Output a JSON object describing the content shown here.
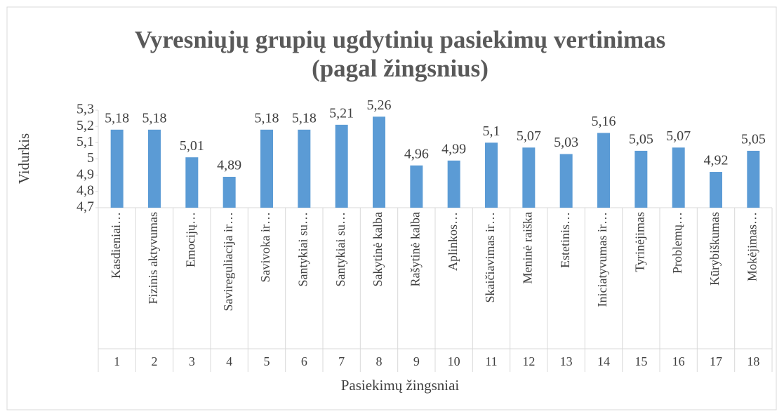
{
  "chart_data": {
    "type": "bar",
    "title": "Vyresniųjų grupių ugdytinių pasiekimų vertinimas",
    "subtitle": "(pagal žingsnius)",
    "x_label": "Pasiekimų žingsniai",
    "y_label": "Vidurkis",
    "categories": [
      "Kasdieniai…",
      "Fizinis aktyvumas",
      "Emocijų…",
      "Savireguliacija ir…",
      "Savivoka ir…",
      "Santykiai su…",
      "Santykiai su…",
      "Sakytinė kalba",
      "Rašytinė kalba",
      "Aplinkos…",
      "Skaičiavimas ir…",
      "Meninė raiška",
      "Estetinis…",
      "Iniciatyvumas ir…",
      "Tyrinėjimas",
      "Problemų…",
      "Kūrybiškumas",
      "Mokėjimas…"
    ],
    "category_numbers": [
      1,
      2,
      3,
      4,
      5,
      6,
      7,
      8,
      9,
      10,
      11,
      12,
      13,
      14,
      15,
      16,
      17,
      18
    ],
    "values": [
      5.18,
      5.18,
      5.01,
      4.89,
      5.18,
      5.18,
      5.21,
      5.26,
      4.96,
      4.99,
      5.1,
      5.07,
      5.03,
      5.16,
      5.05,
      5.07,
      4.92,
      5.05
    ],
    "value_labels": [
      "5,18",
      "5,18",
      "5,01",
      "4,89",
      "5,18",
      "5,18",
      "5,21",
      "5,26",
      "4,96",
      "4,99",
      "5,1",
      "5,07",
      "5,03",
      "5,16",
      "5,05",
      "5,07",
      "4,92",
      "5,05"
    ],
    "color": "#5b9bd5",
    "ylim": [
      4.7,
      5.3
    ],
    "yticks": [
      {
        "value": 4.7,
        "label": "4,7"
      },
      {
        "value": 4.8,
        "label": "4,8"
      },
      {
        "value": 4.9,
        "label": "4,9"
      },
      5,
      {
        "value": 5.1,
        "label": "5,1"
      },
      {
        "value": 5.2,
        "label": "5,2"
      },
      {
        "value": 5.3,
        "label": "5,3"
      }
    ],
    "grid": false
  }
}
